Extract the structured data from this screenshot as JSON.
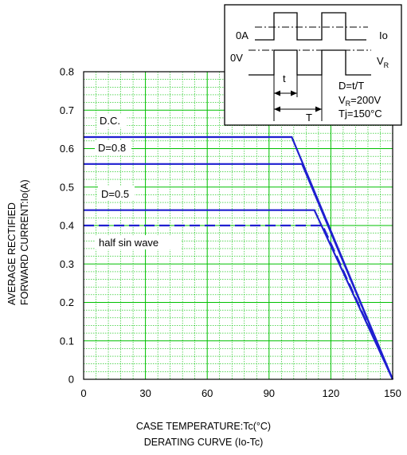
{
  "chart_data": {
    "type": "line",
    "xlabel": "CASE TEMPERATURE:Tc(°C)",
    "ylabel_lines": [
      "AVERAGE RECTIFIED",
      "FORWARD CURRENT:Io(A)"
    ],
    "caption": "DERATING  CURVE (Io-Tc)",
    "xlim": [
      0,
      150
    ],
    "ylim": [
      0,
      0.8
    ],
    "x_ticks": [
      "0",
      "30",
      "60",
      "90",
      "120",
      "150"
    ],
    "y_ticks": [
      "0",
      "0.1",
      "0.2",
      "0.3",
      "0.4",
      "0.5",
      "0.6",
      "0.7",
      "0.8"
    ],
    "grid": true,
    "grid_color": "#00c000",
    "line_color": "#1f1fd0",
    "series": [
      {
        "name": "D.C.",
        "style": "solid",
        "points": [
          [
            0,
            0.63
          ],
          [
            101,
            0.63
          ],
          [
            150,
            0
          ]
        ]
      },
      {
        "name": "D=0.8",
        "style": "solid",
        "points": [
          [
            0,
            0.56
          ],
          [
            106,
            0.56
          ],
          [
            150,
            0
          ]
        ]
      },
      {
        "name": "D=0.5",
        "style": "solid",
        "points": [
          [
            0,
            0.44
          ],
          [
            112,
            0.44
          ],
          [
            150,
            0
          ]
        ]
      },
      {
        "name": "half sin wave",
        "style": "dashed",
        "points": [
          [
            0,
            0.4
          ],
          [
            116,
            0.4
          ],
          [
            150,
            0
          ]
        ]
      }
    ],
    "inset": {
      "labels": {
        "zero_a": "0A",
        "zero_v": "0V",
        "io": "Io",
        "vr": "V",
        "vr_sub": "R",
        "t_small": "t",
        "t_big": "T",
        "duty": "D=t/T",
        "vr_eq_main": "V",
        "vr_eq_sub": "R",
        "vr_eq_val": "=200V",
        "tj": "Tj=150°C"
      }
    }
  }
}
